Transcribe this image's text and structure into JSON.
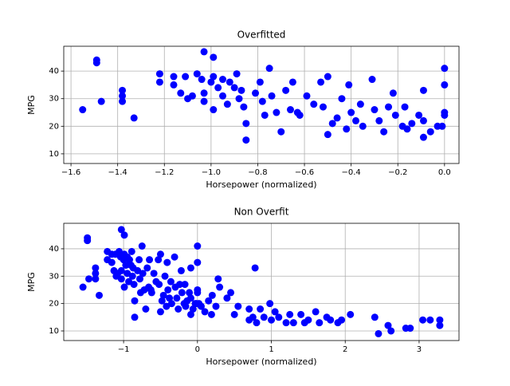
{
  "chart_data": [
    {
      "type": "scatter",
      "title": "Overfitted",
      "x_label": "Horsepower (normalized)",
      "y_label": "MPG",
      "grid": true,
      "xlim": [
        -1.631,
        0.062
      ],
      "ylim": [
        6.5,
        49
      ],
      "xticks": [
        {
          "value": -1.6,
          "label": "−1.6"
        },
        {
          "value": -1.4,
          "label": "−1.4"
        },
        {
          "value": -1.2,
          "label": "−1.2"
        },
        {
          "value": -1.0,
          "label": "−1.0"
        },
        {
          "value": -0.8,
          "label": "−0.8"
        },
        {
          "value": -0.6,
          "label": "−0.6"
        },
        {
          "value": -0.4,
          "label": "−0.4"
        },
        {
          "value": -0.2,
          "label": "−0.2"
        },
        {
          "value": 0,
          "label": "0.0"
        }
      ],
      "yticks": [
        10,
        20,
        30,
        40
      ],
      "series": [
        {
          "color": "#0000ff",
          "x": [
            -1.55,
            -1.49,
            -1.49,
            -1.47,
            -1.38,
            -1.38,
            -1.38,
            -1.33,
            -1.22,
            -1.22,
            -1.16,
            -1.16,
            -1.13,
            -1.11,
            -1.1,
            -1.08,
            -1.06,
            -1.04,
            -1.03,
            -1.03,
            -1.03,
            -1.0,
            -0.99,
            -0.99,
            -0.99,
            -0.97,
            -0.95,
            -0.95,
            -0.93,
            -0.92,
            -0.9,
            -0.89,
            -0.88,
            -0.87,
            -0.86,
            -0.85,
            -0.85,
            -0.81,
            -0.79,
            -0.78,
            -0.77,
            -0.75,
            -0.74,
            -0.72,
            -0.7,
            -0.68,
            -0.66,
            -0.65,
            -0.63,
            -0.62,
            -0.59,
            -0.56,
            -0.53,
            -0.52,
            -0.5,
            -0.5,
            -0.48,
            -0.46,
            -0.44,
            -0.42,
            -0.41,
            -0.4,
            -0.38,
            -0.36,
            -0.35,
            -0.31,
            -0.3,
            -0.28,
            -0.26,
            -0.24,
            -0.22,
            -0.21,
            -0.18,
            -0.17,
            -0.16,
            -0.14,
            -0.11,
            -0.09,
            -0.09,
            -0.09,
            -0.06,
            -0.03,
            -0.01,
            0,
            0,
            0,
            0
          ],
          "values": [
            26,
            44,
            43,
            29,
            33,
            31,
            29,
            23,
            39,
            36,
            38,
            35,
            32,
            38,
            30,
            31,
            39,
            37,
            47,
            32,
            29,
            36,
            45,
            38,
            26,
            34,
            37,
            31,
            28,
            36,
            34,
            39,
            30,
            33,
            27,
            21,
            15,
            32,
            36,
            29,
            24,
            41,
            31,
            25,
            18,
            33,
            26,
            36,
            25,
            24,
            31,
            28,
            36,
            27,
            38,
            17,
            21,
            23,
            30,
            19,
            35,
            25,
            22,
            28,
            20,
            37,
            26,
            22,
            18,
            27,
            32,
            24,
            20,
            27,
            19,
            21,
            24,
            33,
            16,
            22,
            18,
            20,
            20,
            41,
            35,
            24,
            25
          ]
        }
      ]
    },
    {
      "type": "scatter",
      "title": "Non Overfit",
      "x_label": "Horsepower (normalized)",
      "y_label": "MPG",
      "grid": true,
      "xlim": [
        -1.81,
        3.54
      ],
      "ylim": [
        6.5,
        49.3
      ],
      "xticks": [
        {
          "value": -1,
          "label": "−1"
        },
        0,
        1,
        2,
        3
      ],
      "yticks": [
        10,
        20,
        30,
        40
      ],
      "series": [
        {
          "color": "#0000ff",
          "x": [
            -1.55,
            -1.49,
            -1.49,
            -1.47,
            -1.38,
            -1.38,
            -1.38,
            -1.33,
            -1.22,
            -1.22,
            -1.16,
            -1.16,
            -1.13,
            -1.11,
            -1.1,
            -1.08,
            -1.06,
            -1.04,
            -1.03,
            -1.03,
            -1.03,
            -1.0,
            -0.99,
            -0.99,
            -0.99,
            -0.97,
            -0.95,
            -0.95,
            -0.93,
            -0.92,
            -0.9,
            -0.89,
            -0.88,
            -0.87,
            -0.86,
            -0.85,
            -0.85,
            -0.81,
            -0.79,
            -0.78,
            -0.77,
            -0.75,
            -0.74,
            -0.72,
            -0.7,
            -0.68,
            -0.66,
            -0.65,
            -0.63,
            -0.62,
            -0.59,
            -0.56,
            -0.53,
            -0.52,
            -0.5,
            -0.5,
            -0.48,
            -0.46,
            -0.44,
            -0.42,
            -0.41,
            -0.4,
            -0.38,
            -0.36,
            -0.35,
            -0.31,
            -0.3,
            -0.28,
            -0.26,
            -0.24,
            -0.22,
            -0.21,
            -0.18,
            -0.17,
            -0.16,
            -0.14,
            -0.11,
            -0.09,
            -0.09,
            -0.09,
            -0.06,
            -0.03,
            -0.01,
            0,
            0,
            0,
            0,
            0.02,
            0.05,
            0.1,
            0.15,
            0.19,
            0.2,
            0.25,
            0.28,
            0.3,
            0.4,
            0.45,
            0.5,
            0.55,
            0.7,
            0.7,
            0.75,
            0.78,
            0.8,
            0.85,
            0.9,
            0.98,
            1.0,
            1.05,
            1.1,
            1.2,
            1.25,
            1.3,
            1.4,
            1.45,
            1.5,
            1.6,
            1.65,
            1.75,
            1.8,
            1.9,
            1.95,
            2.07,
            2.4,
            2.45,
            2.58,
            2.62,
            2.82,
            2.88,
            3.05,
            3.15,
            3.28,
            3.28
          ],
          "values": [
            26,
            44,
            43,
            29,
            33,
            31,
            29,
            23,
            39,
            36,
            38,
            35,
            32,
            38,
            30,
            31,
            39,
            37,
            47,
            32,
            29,
            36,
            45,
            38,
            26,
            34,
            37,
            31,
            28,
            36,
            34,
            39,
            30,
            33,
            27,
            21,
            15,
            32,
            36,
            29,
            24,
            41,
            31,
            25,
            18,
            33,
            26,
            36,
            25,
            24,
            31,
            28,
            36,
            27,
            38,
            17,
            21,
            23,
            30,
            19,
            35,
            25,
            22,
            28,
            20,
            37,
            26,
            22,
            18,
            27,
            32,
            24,
            20,
            27,
            19,
            21,
            24,
            33,
            16,
            22,
            18,
            20,
            20,
            41,
            35,
            24,
            25,
            20,
            19,
            17,
            21,
            16,
            23,
            19,
            29,
            26,
            22,
            24,
            16,
            19,
            18,
            14,
            15,
            33,
            13,
            18,
            15,
            20,
            14,
            17,
            15,
            13,
            16,
            13,
            16,
            13,
            14,
            17,
            13,
            15,
            14,
            13,
            14,
            16,
            15,
            9,
            12,
            10,
            11,
            11,
            14,
            14,
            14,
            12
          ]
        }
      ]
    }
  ]
}
